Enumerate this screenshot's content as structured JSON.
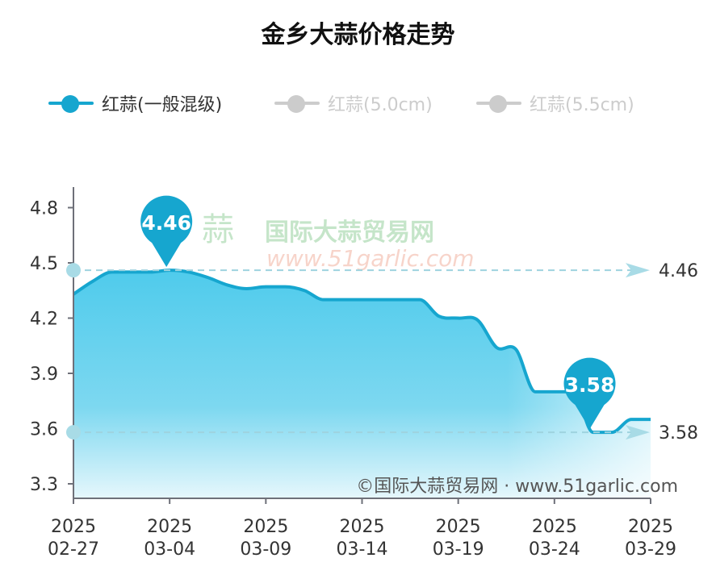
{
  "chart_data": {
    "type": "area",
    "title": "金乡大蒜价格走势",
    "legend": {
      "placement": "top",
      "entries": [
        {
          "name": "红蒜(一般混级)",
          "active": true,
          "color": "#16a6cf"
        },
        {
          "name": "红蒜(5.0cm)",
          "active": false,
          "color": "#cccccc"
        },
        {
          "name": "红蒜(5.5cm)",
          "active": false,
          "color": "#cccccc"
        }
      ]
    },
    "x_ticks": [
      {
        "year": "2025",
        "date": "02-27"
      },
      {
        "year": "2025",
        "date": "03-04"
      },
      {
        "year": "2025",
        "date": "03-09"
      },
      {
        "year": "2025",
        "date": "03-14"
      },
      {
        "year": "2025",
        "date": "03-19"
      },
      {
        "year": "2025",
        "date": "03-24"
      },
      {
        "year": "2025",
        "date": "03-29"
      }
    ],
    "x_range": [
      "2025-02-27",
      "2025-03-29"
    ],
    "ylim": [
      3.3,
      4.9
    ],
    "y_ticks": [
      "3.3",
      "3.6",
      "3.9",
      "4.2",
      "4.5",
      "4.8"
    ],
    "grid": false,
    "series": [
      {
        "name": "红蒜(一般混级)",
        "x": [
          "02-27",
          "02-28",
          "03-01",
          "03-02",
          "03-03",
          "03-04",
          "03-05",
          "03-06",
          "03-07",
          "03-08",
          "03-09",
          "03-10",
          "03-11",
          "03-12",
          "03-13",
          "03-14",
          "03-15",
          "03-16",
          "03-17",
          "03-18",
          "03-19",
          "03-20",
          "03-21",
          "03-22",
          "03-23",
          "03-24",
          "03-25",
          "03-26",
          "03-27",
          "03-28",
          "03-29"
        ],
        "values": [
          4.33,
          4.4,
          4.45,
          4.45,
          4.45,
          4.46,
          4.45,
          4.42,
          4.38,
          4.36,
          4.37,
          4.37,
          4.35,
          4.3,
          4.3,
          4.3,
          4.3,
          4.3,
          4.3,
          4.21,
          4.2,
          4.19,
          4.04,
          4.03,
          3.8,
          3.8,
          3.8,
          3.58,
          3.58,
          3.65,
          3.65
        ]
      }
    ],
    "mark_points": [
      {
        "label": "4.46",
        "index": 5
      },
      {
        "label": "3.58",
        "index": 27
      }
    ],
    "mark_lines": [
      {
        "label": "4.46",
        "value": 4.46
      },
      {
        "label": "3.58",
        "value": 3.58
      }
    ],
    "watermark": {
      "name": "国际大蒜贸易网",
      "url": "www.51garlic.com"
    },
    "footer": "©国际大蒜贸易网 · www.51garlic.com"
  }
}
